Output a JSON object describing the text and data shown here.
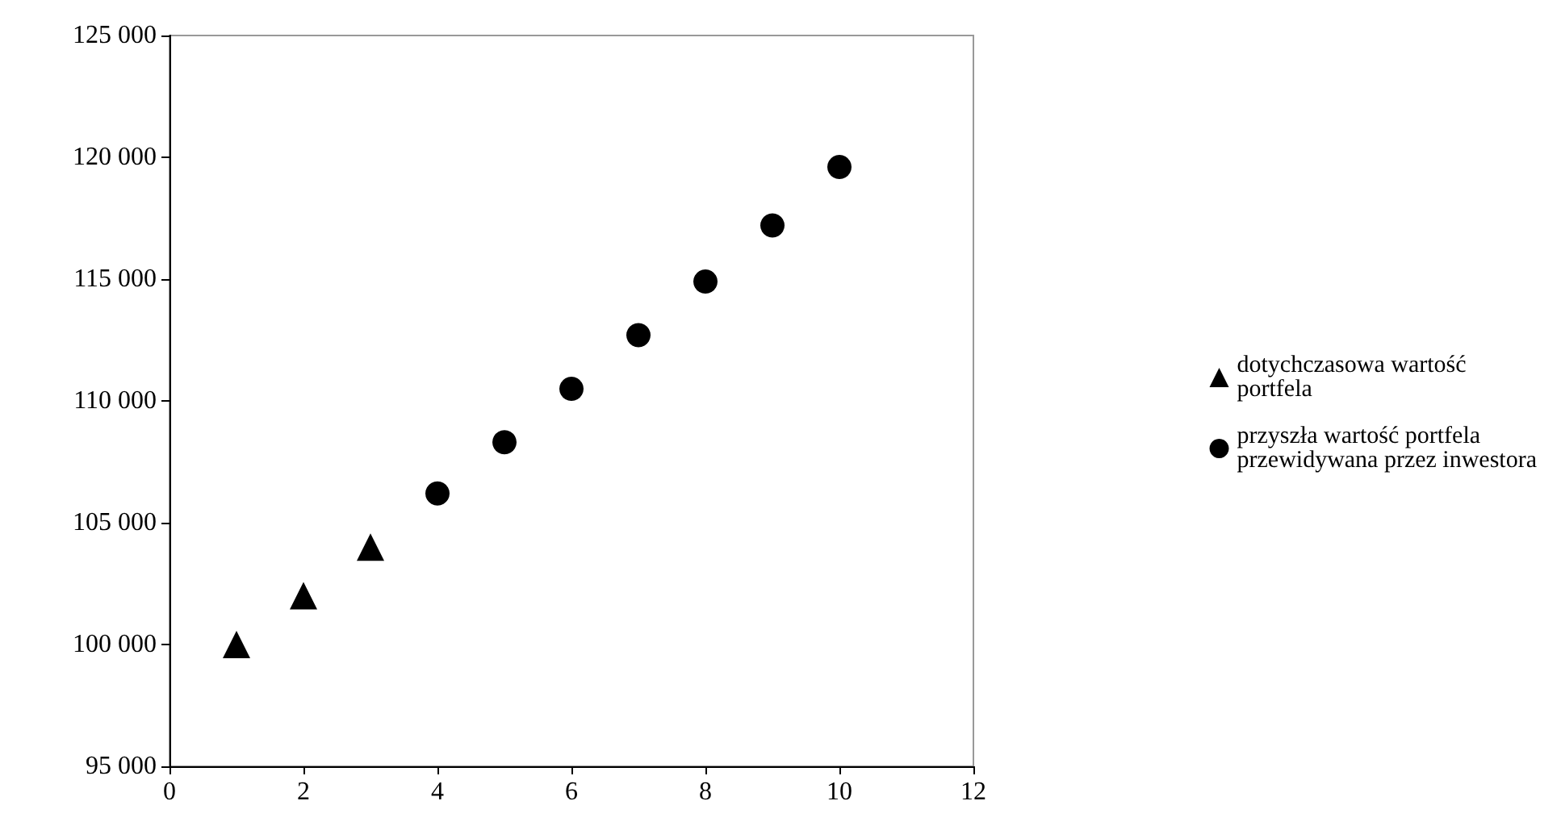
{
  "chart_data": {
    "type": "scatter",
    "series": [
      {
        "name": "dotychczasowa wartość portfela",
        "color": "#000000",
        "marker": "triangle",
        "x": [
          1,
          2,
          3
        ],
        "values": [
          100000,
          102000,
          104000
        ]
      },
      {
        "name": "przyszła wartość portfela przewidywana przez inwestora",
        "color": "#000000",
        "marker": "circle",
        "x": [
          4,
          5,
          6,
          7,
          8,
          9,
          10
        ],
        "values": [
          106200,
          108300,
          110500,
          112700,
          114900,
          117200,
          119600
        ]
      }
    ],
    "xlim": [
      0,
      12
    ],
    "xticks": [
      0,
      2,
      4,
      6,
      8,
      10,
      12
    ],
    "ylim": [
      95000,
      125000
    ],
    "yticks": [
      95000,
      100000,
      105000,
      110000,
      115000,
      120000,
      125000
    ],
    "grid": false,
    "legend": "right"
  }
}
